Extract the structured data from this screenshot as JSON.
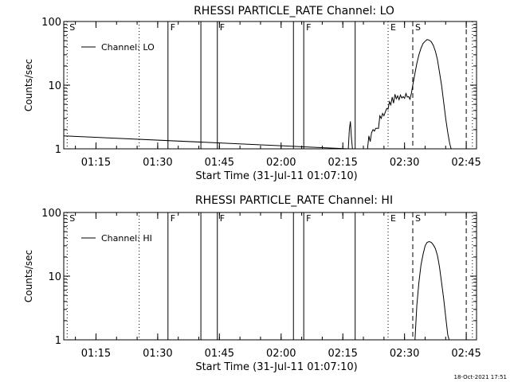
{
  "footer": {
    "date_stamp": "18-Oct-2021 17:51"
  },
  "chart_data": [
    {
      "type": "line",
      "title": "RHESSI PARTICLE_RATE Channel: LO",
      "xlabel": "Start Time (31-Jul-11 01:07:10)",
      "ylabel": "Counts/sec",
      "y_scale": "log",
      "ylim": [
        1,
        100
      ],
      "xlim": [
        "01:07:10",
        "02:47:30"
      ],
      "x_ticks": [
        "01:15",
        "01:30",
        "01:45",
        "02:00",
        "02:15",
        "02:30",
        "02:45"
      ],
      "y_ticks": [
        "1",
        "10",
        "100"
      ],
      "legend": {
        "label": "Channel: LO",
        "placement": "top-left"
      },
      "series": [
        {
          "name": "Channel: LO",
          "x": [
            "01:07:10",
            "02:16:20",
            "02:16:35",
            "02:16:50",
            "02:17:05",
            "02:17:20",
            "02:17:35",
            "02:18:00",
            "02:20:00",
            "02:21:00",
            "02:21:20",
            "02:21:40",
            "02:22:00",
            "02:22:20",
            "02:22:40",
            "02:23:00",
            "02:23:20",
            "02:23:40",
            "02:24:00",
            "02:24:20",
            "02:24:40",
            "02:25:00",
            "02:25:20",
            "02:25:40",
            "02:26:00",
            "02:26:20",
            "02:26:40",
            "02:27:00",
            "02:27:20",
            "02:27:40",
            "02:28:00",
            "02:28:20",
            "02:28:40",
            "02:29:00",
            "02:29:20",
            "02:29:40",
            "02:30:00",
            "02:30:20",
            "02:30:40",
            "02:31:00",
            "02:31:20",
            "02:31:40",
            "02:32:00",
            "02:32:30",
            "02:33:00",
            "02:33:30",
            "02:34:00",
            "02:34:30",
            "02:35:00",
            "02:35:30",
            "02:36:00",
            "02:36:30",
            "02:37:00",
            "02:37:30",
            "02:38:00",
            "02:38:30",
            "02:39:00",
            "02:39:30",
            "02:40:00",
            "02:40:30",
            "02:41:00",
            "02:41:30",
            "02:42:00"
          ],
          "values": [
            1.6,
            1.0,
            2.0,
            2.7,
            1.5,
            1.0,
            0.8,
            0.8,
            0.8,
            1.0,
            1.6,
            1.3,
            1.8,
            2.0,
            1.9,
            2.1,
            2.1,
            2.1,
            3.3,
            3.0,
            3.6,
            3.3,
            3.8,
            4.3,
            4.2,
            5.5,
            4.9,
            6.5,
            5.2,
            7.2,
            6.1,
            6.8,
            5.9,
            7.0,
            6.3,
            6.6,
            6.2,
            7.4,
            6.5,
            6.6,
            6.0,
            7.5,
            10.0,
            15.0,
            22.0,
            30.0,
            38.0,
            45.0,
            49.0,
            52.0,
            51.0,
            48.0,
            42.0,
            34.0,
            25.0,
            16.0,
            10.0,
            5.5,
            3.0,
            1.8,
            1.2,
            0.9,
            0.8
          ]
        }
      ],
      "annotations": [
        {
          "time": "01:08:00",
          "label": "S",
          "style": "dotted"
        },
        {
          "time": "01:25:30",
          "label": "",
          "style": "dotted"
        },
        {
          "time": "01:32:30",
          "label": "F",
          "style": "solid"
        },
        {
          "time": "01:40:30",
          "label": "",
          "style": "solid"
        },
        {
          "time": "01:44:30",
          "label": "F",
          "style": "solid"
        },
        {
          "time": "02:03:00",
          "label": "",
          "style": "solid"
        },
        {
          "time": "02:05:30",
          "label": "F",
          "style": "solid"
        },
        {
          "time": "02:18:00",
          "label": "",
          "style": "solid"
        },
        {
          "time": "02:26:00",
          "label": "E",
          "style": "dotted"
        },
        {
          "time": "02:32:00",
          "label": "S",
          "style": "dashed"
        },
        {
          "time": "02:45:00",
          "label": "",
          "style": "dashed"
        },
        {
          "time": "02:46:30",
          "label": "",
          "style": "dotted"
        }
      ],
      "grid": false
    },
    {
      "type": "line",
      "title": "RHESSI PARTICLE_RATE Channel: HI",
      "xlabel": "Start Time (31-Jul-11 01:07:10)",
      "ylabel": "Counts/sec",
      "y_scale": "log",
      "ylim": [
        1,
        100
      ],
      "xlim": [
        "01:07:10",
        "02:47:30"
      ],
      "x_ticks": [
        "01:15",
        "01:30",
        "01:45",
        "02:00",
        "02:15",
        "02:30",
        "02:45"
      ],
      "y_ticks": [
        "1",
        "10",
        "100"
      ],
      "legend": {
        "label": "Channel: HI",
        "placement": "top-left"
      },
      "series": [
        {
          "name": "Channel: HI",
          "x": [
            "02:32:30",
            "02:33:00",
            "02:33:30",
            "02:34:00",
            "02:34:30",
            "02:35:00",
            "02:35:30",
            "02:36:00",
            "02:36:30",
            "02:37:00",
            "02:37:30",
            "02:38:00",
            "02:38:30",
            "02:39:00",
            "02:39:30",
            "02:40:00",
            "02:40:30",
            "02:41:00"
          ],
          "values": [
            0.9,
            3.5,
            8.0,
            15.0,
            22.0,
            30.0,
            34.0,
            35.0,
            34.0,
            31.0,
            27.0,
            21.0,
            14.0,
            8.0,
            4.5,
            2.3,
            1.2,
            0.8
          ]
        }
      ],
      "annotations": [
        {
          "time": "01:08:00",
          "label": "S",
          "style": "dotted"
        },
        {
          "time": "01:25:30",
          "label": "",
          "style": "dotted"
        },
        {
          "time": "01:32:30",
          "label": "F",
          "style": "solid"
        },
        {
          "time": "01:40:30",
          "label": "",
          "style": "solid"
        },
        {
          "time": "01:44:30",
          "label": "F",
          "style": "solid"
        },
        {
          "time": "02:03:00",
          "label": "",
          "style": "solid"
        },
        {
          "time": "02:05:30",
          "label": "F",
          "style": "solid"
        },
        {
          "time": "02:18:00",
          "label": "",
          "style": "solid"
        },
        {
          "time": "02:26:00",
          "label": "E",
          "style": "dotted"
        },
        {
          "time": "02:32:00",
          "label": "S",
          "style": "dashed"
        },
        {
          "time": "02:45:00",
          "label": "",
          "style": "dashed"
        },
        {
          "time": "02:46:30",
          "label": "",
          "style": "dotted"
        }
      ],
      "grid": false
    }
  ]
}
